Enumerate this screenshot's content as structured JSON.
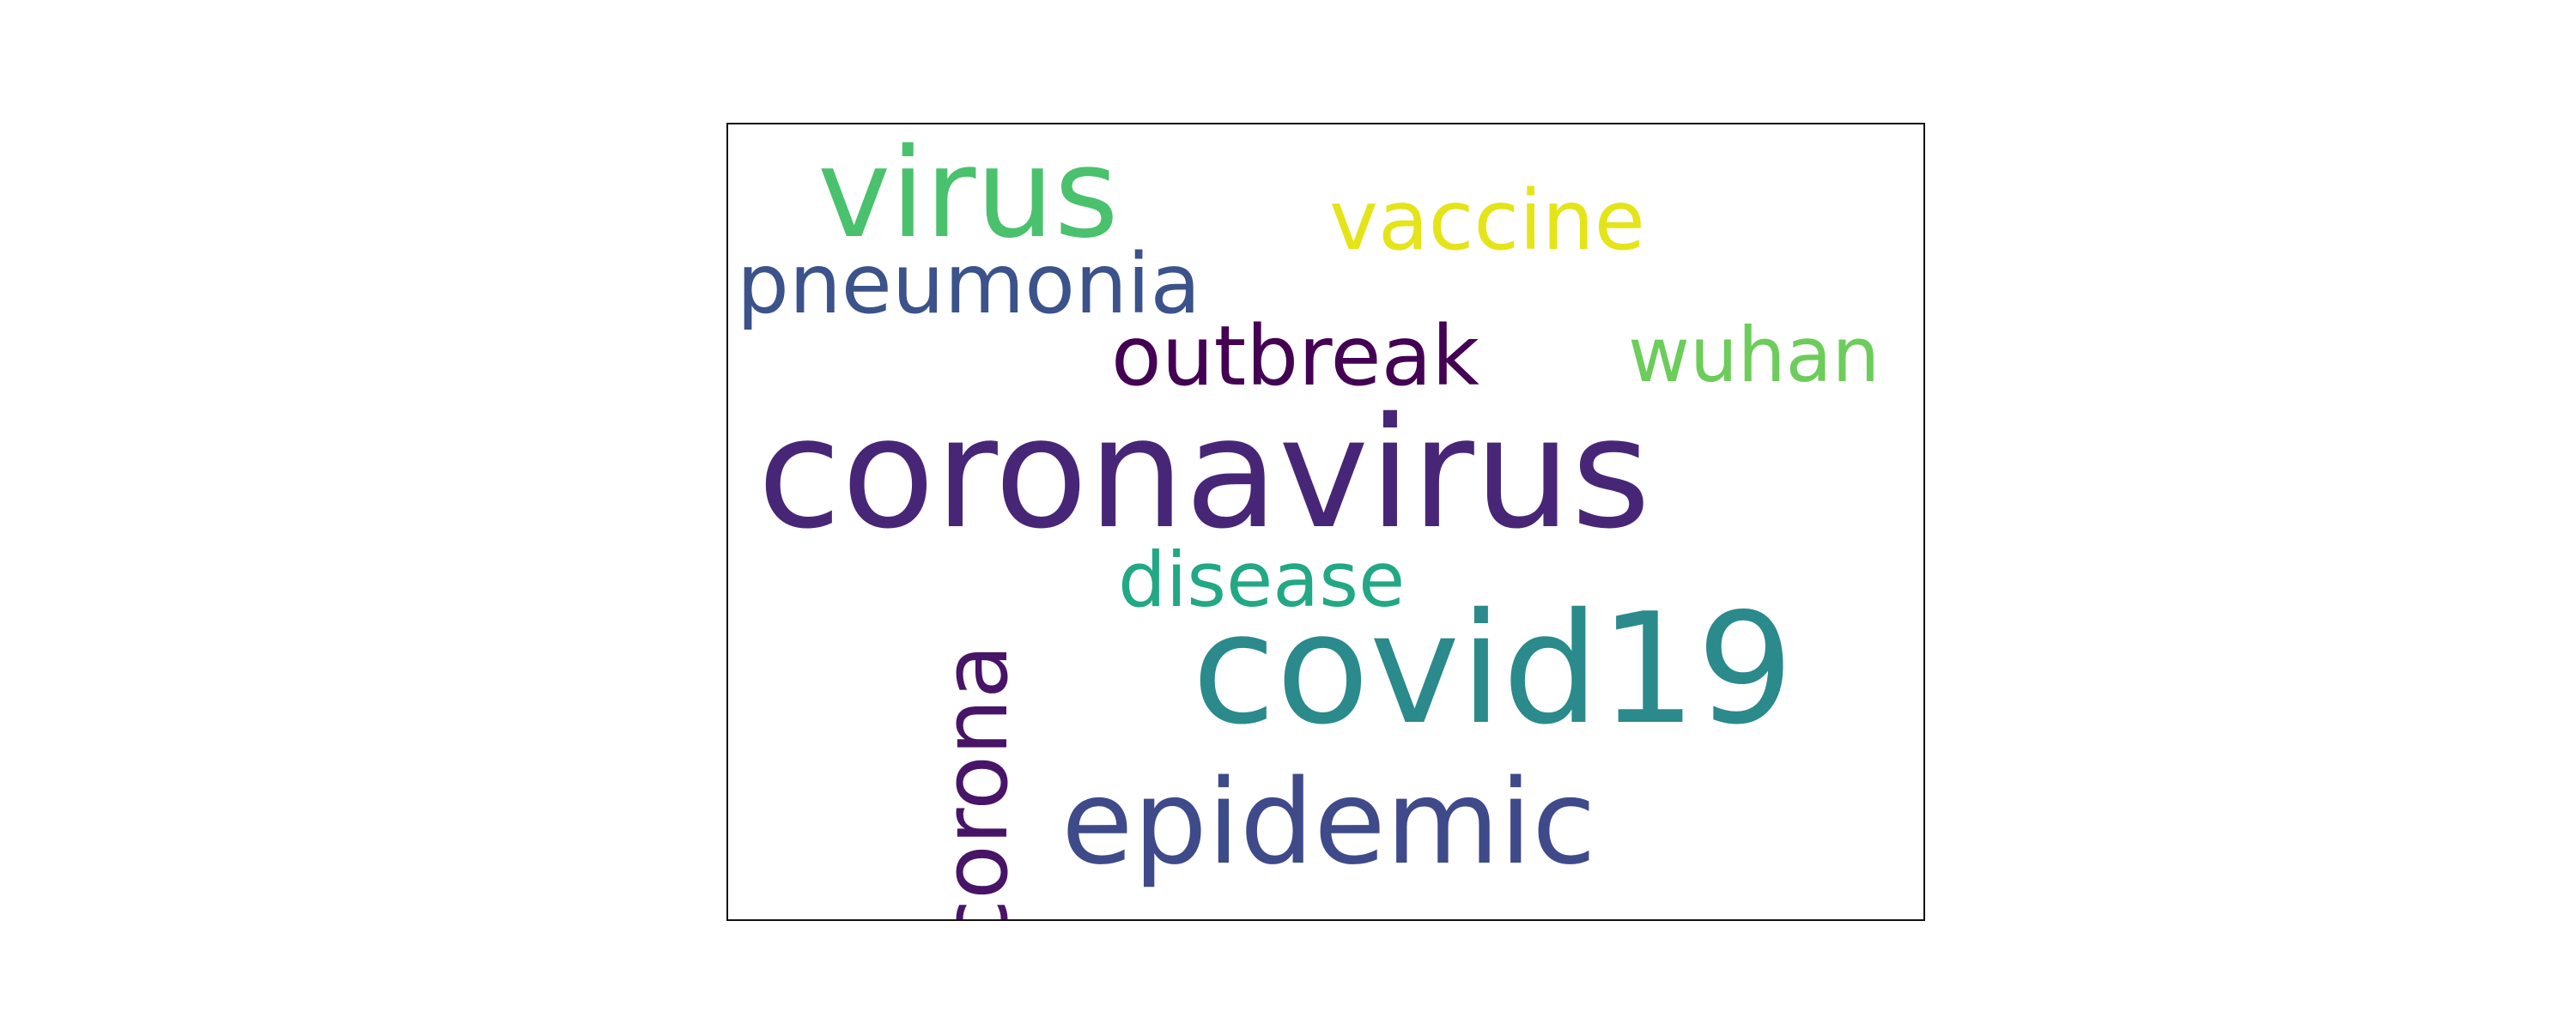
{
  "wordcloud": {
    "words": [
      {
        "text": "coronavirus",
        "color": "#482677"
      },
      {
        "text": "covid19",
        "color": "#2a8a8c"
      },
      {
        "text": "virus",
        "color": "#4ac16d"
      },
      {
        "text": "epidemic",
        "color": "#3e4a89"
      },
      {
        "text": "corona",
        "color": "#481467"
      },
      {
        "text": "pneumonia",
        "color": "#3b528b"
      },
      {
        "text": "outbreak",
        "color": "#440154"
      },
      {
        "text": "vaccine",
        "color": "#e4e419"
      },
      {
        "text": "wuhan",
        "color": "#6ccd5a"
      },
      {
        "text": "disease",
        "color": "#22a884"
      }
    ]
  }
}
